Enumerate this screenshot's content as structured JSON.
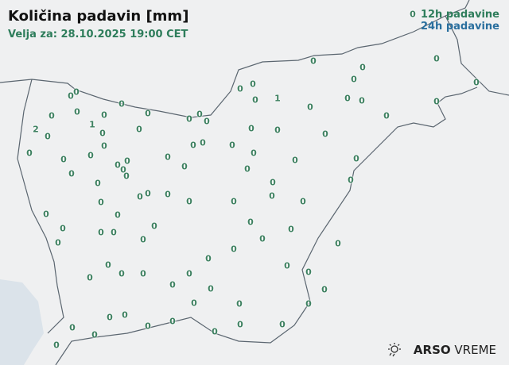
{
  "title": "Količina padavin [mm]",
  "valid_for": "Velja za: 28.10.2025 19:00 CET",
  "legend": {
    "items": [
      {
        "label": "12h padavine",
        "color": "#2e7d5b"
      },
      {
        "label": "24h padavine",
        "color": "#2a6f9e"
      }
    ]
  },
  "logo": {
    "brand": "ARSO",
    "product": "VREME",
    "icon": "weather-sun-rain-icon"
  },
  "stations": [
    "0",
    "0",
    "0",
    "0",
    "0",
    "0",
    "0",
    "0",
    "0",
    "0",
    "1",
    "2",
    "0",
    "0",
    "0",
    "0",
    "0",
    "0",
    "0",
    "0",
    "0",
    "0",
    "0",
    "0",
    "0",
    "0",
    "0",
    "0",
    "0",
    "0",
    "0",
    "0",
    "0",
    "0",
    "0",
    "0",
    "0",
    "1",
    "0",
    "0",
    "0",
    "0",
    "0",
    "0",
    "0",
    "0",
    "0",
    "0",
    "0",
    "0",
    "0",
    "0",
    "0",
    "0",
    "0",
    "0",
    "0",
    "0",
    "0",
    "0",
    "0",
    "0",
    "0",
    "0",
    "0",
    "0",
    "0",
    "0",
    "0",
    "0",
    "0",
    "0",
    "0",
    "0",
    "0",
    "0",
    "0",
    "0",
    "0",
    "0",
    "0",
    "0",
    "0",
    "0",
    "0",
    "0",
    "0",
    "0",
    "0",
    "0",
    "0",
    "0",
    "0",
    "0",
    "0",
    "0",
    "0",
    "0",
    "0",
    "0"
  ]
}
